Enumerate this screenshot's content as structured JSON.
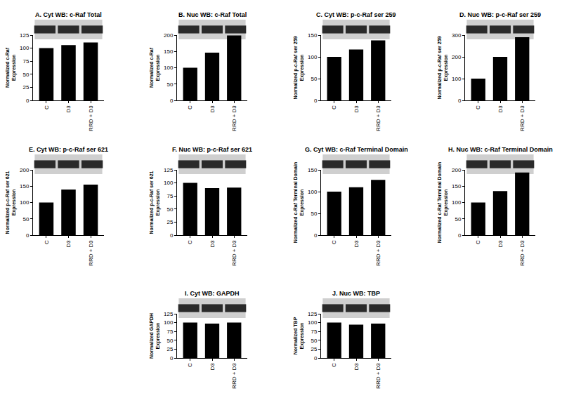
{
  "chart_data": [
    {
      "type": "bar",
      "title": "A. Cyt WB: c-Raf Total",
      "y_label": "Normalized c-Raf\nExpression",
      "categories": [
        "C",
        "D3",
        "RRD + D3"
      ],
      "values": [
        100,
        106,
        111
      ],
      "color": "#000000",
      "ylim": [
        0,
        125
      ],
      "yticks": [
        0,
        25,
        50,
        75,
        100,
        125
      ],
      "grid": false
    },
    {
      "type": "bar",
      "title": "B. Nuc WB: c-Raf Total",
      "y_label": "Normalized c-Raf\nExpression",
      "categories": [
        "C",
        "D3",
        "RRD + D3"
      ],
      "values": [
        100,
        146,
        199
      ],
      "color": "#000000",
      "ylim": [
        0,
        200
      ],
      "yticks": [
        0,
        50,
        100,
        150,
        200
      ],
      "grid": false
    },
    {
      "type": "bar",
      "title": "C. Cyt WB: p-c-Raf ser 259",
      "y_label": "Normalized p-c-Raf ser 259\nExpression",
      "categories": [
        "C",
        "D3",
        "RRD + D3"
      ],
      "values": [
        100,
        117,
        138
      ],
      "color": "#000000",
      "ylim": [
        0,
        150
      ],
      "yticks": [
        0,
        50,
        100,
        150
      ],
      "grid": false
    },
    {
      "type": "bar",
      "title": "D. Nuc WB: p-c-Raf ser 259",
      "y_label": "Normalized p-c-Raf ser 259\nExpression",
      "categories": [
        "C",
        "D3",
        "RRD + D3"
      ],
      "values": [
        100,
        200,
        290
      ],
      "color": "#000000",
      "ylim": [
        0,
        300
      ],
      "yticks": [
        0,
        100,
        200,
        300
      ],
      "grid": false
    },
    {
      "type": "bar",
      "title": "E. Cyt WB: p-c-Raf ser 621",
      "y_label": "Normalized p-c-Raf ser 621\nExpression",
      "categories": [
        "C",
        "D3",
        "RRD + D3"
      ],
      "values": [
        100,
        140,
        155
      ],
      "color": "#000000",
      "ylim": [
        0,
        200
      ],
      "yticks": [
        0,
        50,
        100,
        150,
        200
      ],
      "grid": false
    },
    {
      "type": "bar",
      "title": "F. Nuc WB: p-c-Raf ser 621",
      "y_label": "Normalized p-c-Raf ser 621\nExpression",
      "categories": [
        "C",
        "D3",
        "RRD + D3"
      ],
      "values": [
        100,
        90,
        91
      ],
      "color": "#000000",
      "ylim": [
        0,
        125
      ],
      "yticks": [
        0,
        25,
        50,
        75,
        100,
        125
      ],
      "grid": false
    },
    {
      "type": "bar",
      "title": "G. Cyt WB: c-Raf Terminal Domain",
      "y_label": "Normalized c-Raf Terminal Domain\nExpression",
      "categories": [
        "C",
        "D3",
        "RRD + D3"
      ],
      "values": [
        100,
        110,
        127
      ],
      "color": "#000000",
      "ylim": [
        0,
        150
      ],
      "yticks": [
        0,
        50,
        100,
        150
      ],
      "grid": false
    },
    {
      "type": "bar",
      "title": "H. Nuc WB: c-Raf Terminal Domain",
      "y_label": "Normalized c-Raf Terminal Domain\nExpression",
      "categories": [
        "C",
        "D3",
        "RRD + D3"
      ],
      "values": [
        100,
        135,
        192
      ],
      "color": "#000000",
      "ylim": [
        0,
        200
      ],
      "yticks": [
        0,
        50,
        100,
        150,
        200
      ],
      "grid": false
    },
    {
      "type": "bar",
      "title": "I. Cyt WB: GAPDH",
      "y_label": "Normalized GAPDH\nExpression",
      "categories": [
        "C",
        "D3",
        "RRD + D3"
      ],
      "values": [
        100,
        97,
        100
      ],
      "color": "#000000",
      "ylim": [
        0,
        125
      ],
      "yticks": [
        0,
        25,
        50,
        75,
        100,
        125
      ],
      "grid": false
    },
    {
      "type": "bar",
      "title": "J. Nuc WB: TBP",
      "y_label": "Normalized TBP\nExpression",
      "categories": [
        "C",
        "D3",
        "RRD + D3"
      ],
      "values": [
        100,
        94,
        97
      ],
      "color": "#000000",
      "ylim": [
        0,
        125
      ],
      "yticks": [
        0,
        25,
        50,
        75,
        100,
        125
      ],
      "grid": false
    }
  ]
}
